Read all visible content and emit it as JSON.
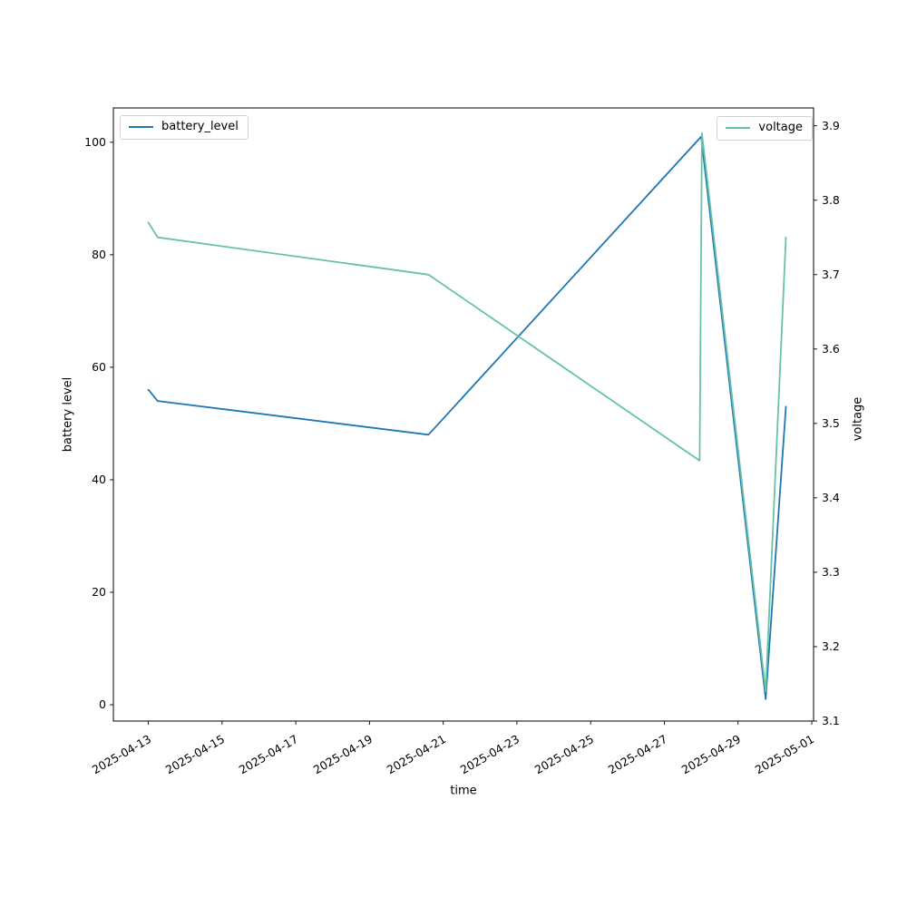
{
  "figure": {
    "background": "#ffffff",
    "spine_color": "#000000",
    "tick_color": "#000000"
  },
  "chart_data": {
    "type": "line",
    "title": "",
    "xlabel": "time",
    "ylabel_left": "battery level",
    "ylabel_right": "voltage",
    "grid": false,
    "legend_left_position": "upper left",
    "legend_right_position": "upper right",
    "x_tick_labels": [
      "2025-04-13",
      "2025-04-15",
      "2025-04-17",
      "2025-04-19",
      "2025-04-21",
      "2025-04-23",
      "2025-04-25",
      "2025-04-27",
      "2025-04-29",
      "2025-05-01"
    ],
    "x_tick_days": [
      0,
      2,
      4,
      6,
      8,
      10,
      12,
      14,
      16,
      18
    ],
    "x_tick_rotation_deg": 30,
    "x_lim_days": [
      -0.95,
      18.05
    ],
    "yleft_ticks": [
      0,
      20,
      40,
      60,
      80,
      100
    ],
    "yleft_lim": [
      -2.9,
      106.1
    ],
    "yright_ticks": [
      3.1,
      3.2,
      3.3,
      3.4,
      3.5,
      3.6,
      3.7,
      3.8,
      3.9
    ],
    "yright_lim": [
      3.1,
      3.924
    ],
    "series": [
      {
        "name": "battery_level",
        "axis": "left",
        "color": "#1f77b4",
        "timestamps": [
          "2025-04-13 00:00",
          "2025-04-13 06:00",
          "2025-04-20 14:00",
          "2025-04-28 00:00",
          "2025-04-29 18:00",
          "2025-04-30 07:00"
        ],
        "x_days": [
          0,
          0.25,
          7.6,
          15.0,
          16.75,
          17.3
        ],
        "values": [
          56,
          54,
          48,
          101,
          1,
          53
        ]
      },
      {
        "name": "voltage",
        "axis": "right",
        "color": "#66c2a5",
        "timestamps": [
          "2025-04-13 00:00",
          "2025-04-13 06:00",
          "2025-04-20 14:00",
          "2025-04-27 23:00",
          "2025-04-28 00:30",
          "2025-04-29 18:00",
          "2025-04-30 07:00"
        ],
        "x_days": [
          0,
          0.25,
          7.6,
          14.96,
          15.02,
          16.75,
          17.3
        ],
        "values": [
          3.77,
          3.75,
          3.7,
          3.45,
          3.89,
          3.14,
          3.75
        ]
      }
    ]
  }
}
